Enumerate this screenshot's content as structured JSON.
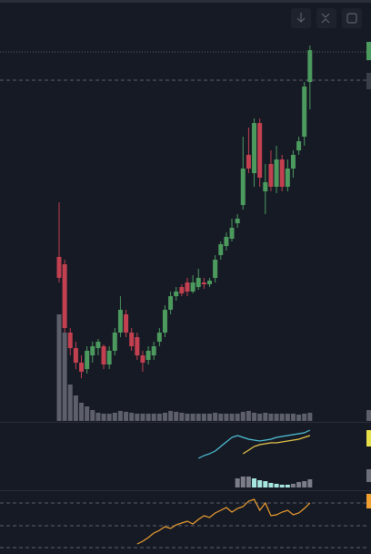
{
  "chart_data": [
    {
      "type": "candlestick",
      "up_color": "#4c9a5e",
      "down_color": "#c2404f",
      "volume_color": "#5d606b",
      "ylim": [
        0,
        420
      ],
      "levels": [
        403,
        372
      ],
      "open": [
        178,
        170,
        95,
        78,
        62,
        55,
        70,
        78,
        80,
        60,
        75,
        95,
        115,
        95,
        90,
        70,
        65,
        70,
        85,
        95,
        120,
        135,
        145,
        150,
        140,
        145,
        150,
        148,
        155,
        180,
        190,
        198,
        215,
        235,
        290,
        270,
        325,
        250,
        280,
        255,
        285,
        255,
        275,
        295,
        310,
        370
      ],
      "high": [
        238,
        175,
        100,
        85,
        70,
        80,
        85,
        88,
        82,
        80,
        100,
        135,
        120,
        100,
        95,
        75,
        80,
        85,
        100,
        125,
        140,
        145,
        148,
        155,
        158,
        165,
        155,
        155,
        180,
        195,
        205,
        220,
        225,
        310,
        320,
        330,
        330,
        280,
        295,
        300,
        290,
        285,
        295,
        310,
        370,
        410
      ],
      "low": [
        150,
        95,
        70,
        55,
        45,
        50,
        62,
        70,
        55,
        55,
        70,
        90,
        90,
        75,
        65,
        52,
        60,
        65,
        80,
        90,
        115,
        130,
        135,
        135,
        138,
        142,
        143,
        145,
        150,
        175,
        185,
        195,
        210,
        230,
        270,
        255,
        255,
        225,
        250,
        248,
        250,
        250,
        265,
        290,
        300,
        340
      ],
      "close": [
        155,
        100,
        78,
        62,
        52,
        75,
        80,
        85,
        60,
        75,
        95,
        120,
        95,
        80,
        70,
        62,
        75,
        80,
        95,
        120,
        135,
        140,
        138,
        140,
        150,
        155,
        148,
        152,
        175,
        192,
        200,
        210,
        220,
        275,
        275,
        325,
        265,
        260,
        255,
        285,
        255,
        275,
        290,
        305,
        365,
        405
      ],
      "volume": [
        115,
        95,
        38,
        26,
        18,
        14,
        10,
        7,
        6,
        6,
        7,
        9,
        8,
        7,
        6,
        6,
        6,
        6,
        6,
        7,
        9,
        8,
        7,
        6,
        6,
        6,
        6,
        6,
        7,
        6,
        6,
        6,
        6,
        8,
        9,
        7,
        6,
        7,
        6,
        6,
        6,
        6,
        6,
        5,
        6,
        7
      ]
    },
    {
      "type": "line",
      "ylim": [
        0,
        70
      ],
      "series": [
        {
          "color": "#4fc3d9",
          "values": [
            null,
            null,
            null,
            null,
            null,
            null,
            null,
            null,
            null,
            null,
            null,
            null,
            null,
            null,
            null,
            null,
            null,
            null,
            null,
            null,
            null,
            null,
            null,
            null,
            null,
            32,
            35,
            37,
            40,
            45,
            50,
            55,
            57,
            55,
            53,
            52,
            51,
            52,
            53,
            55,
            56,
            57,
            58,
            59,
            60,
            63
          ]
        },
        {
          "color": "#e8c84a",
          "values": [
            null,
            null,
            null,
            null,
            null,
            null,
            null,
            null,
            null,
            null,
            null,
            null,
            null,
            null,
            null,
            null,
            null,
            null,
            null,
            null,
            null,
            null,
            null,
            null,
            null,
            null,
            null,
            null,
            null,
            null,
            null,
            null,
            null,
            37,
            41,
            45,
            47,
            48,
            49,
            49,
            50,
            51,
            52,
            53,
            55,
            57
          ]
        }
      ],
      "histogram": {
        "values": [
          null,
          null,
          null,
          null,
          null,
          null,
          null,
          null,
          null,
          null,
          null,
          null,
          null,
          null,
          null,
          null,
          null,
          null,
          null,
          null,
          null,
          null,
          null,
          null,
          null,
          null,
          null,
          null,
          null,
          null,
          null,
          null,
          10,
          12,
          12,
          10,
          8,
          7,
          5,
          4,
          3,
          3,
          4,
          6,
          7,
          9
        ],
        "colors": [
          null,
          null,
          null,
          null,
          null,
          null,
          null,
          null,
          null,
          null,
          null,
          null,
          null,
          null,
          null,
          null,
          null,
          null,
          null,
          null,
          null,
          null,
          null,
          null,
          null,
          null,
          null,
          null,
          null,
          null,
          null,
          null,
          "#7b7e88",
          "#7b7e88",
          "#7b7e88",
          "#a8e6e0",
          "#a8e6e0",
          "#a8e6e0",
          "#a8e6e0",
          "#a8e6e0",
          "#a8e6e0",
          "#a8e6e0",
          "#7b7e88",
          "#7b7e88",
          "#7b7e88",
          "#7b7e88"
        ]
      }
    },
    {
      "type": "line",
      "ylim": [
        0,
        68
      ],
      "levels": [
        56,
        31,
        7
      ],
      "series": [
        {
          "color": "#f0a030",
          "values": [
            null,
            null,
            null,
            null,
            null,
            null,
            null,
            null,
            null,
            null,
            null,
            null,
            null,
            null,
            11,
            14,
            18,
            23,
            26,
            30,
            28,
            32,
            34,
            36,
            33,
            38,
            42,
            40,
            45,
            48,
            51,
            46,
            50,
            52,
            58,
            60,
            48,
            56,
            42,
            43,
            46,
            48,
            43,
            45,
            50,
            56
          ]
        }
      ]
    }
  ]
}
